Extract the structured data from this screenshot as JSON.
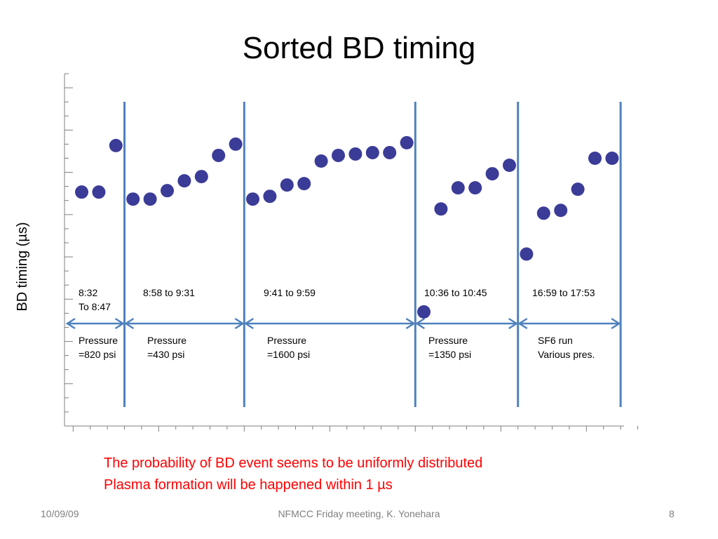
{
  "slide": {
    "title": "Sorted BD timing",
    "notes": [
      "The probability of BD event seems to be uniformly distributed",
      "Plasma formation will be happened within 1 µs"
    ],
    "footer": {
      "date": "10/09/09",
      "center": "NFMCC Friday meeting, K. Yonehara",
      "page": "8"
    }
  },
  "colors": {
    "marker": "#3b3b98",
    "divider": "#4f81bd",
    "axis": "#7f7f7f",
    "note": "#ff0000"
  },
  "chart_data": {
    "type": "scatter",
    "title": "",
    "ylabel": "BD timing (µs)",
    "xlabel": "",
    "ylim": [
      0,
      25
    ],
    "y_tick_count": 25,
    "x_tick_count": 32,
    "grid": false,
    "points": [
      {
        "x": 1,
        "y": 16.6
      },
      {
        "x": 2,
        "y": 16.6
      },
      {
        "x": 3,
        "y": 19.9
      },
      {
        "x": 4,
        "y": 16.1
      },
      {
        "x": 5,
        "y": 16.1
      },
      {
        "x": 6,
        "y": 16.7
      },
      {
        "x": 7,
        "y": 17.4
      },
      {
        "x": 8,
        "y": 17.7
      },
      {
        "x": 9,
        "y": 19.2
      },
      {
        "x": 10,
        "y": 20.0
      },
      {
        "x": 11,
        "y": 16.1
      },
      {
        "x": 12,
        "y": 16.3
      },
      {
        "x": 13,
        "y": 17.1
      },
      {
        "x": 14,
        "y": 17.2
      },
      {
        "x": 15,
        "y": 18.8
      },
      {
        "x": 16,
        "y": 19.2
      },
      {
        "x": 17,
        "y": 19.3
      },
      {
        "x": 18,
        "y": 19.4
      },
      {
        "x": 19,
        "y": 19.4
      },
      {
        "x": 20,
        "y": 20.1
      },
      {
        "x": 21,
        "y": 8.1
      },
      {
        "x": 22,
        "y": 15.4
      },
      {
        "x": 23,
        "y": 16.9
      },
      {
        "x": 24,
        "y": 16.9
      },
      {
        "x": 25,
        "y": 17.9
      },
      {
        "x": 26,
        "y": 18.5
      },
      {
        "x": 27,
        "y": 12.2
      },
      {
        "x": 28,
        "y": 15.1
      },
      {
        "x": 29,
        "y": 15.3
      },
      {
        "x": 30,
        "y": 16.8
      },
      {
        "x": 31,
        "y": 19.0
      },
      {
        "x": 32,
        "y": 19.0
      }
    ],
    "dividers_after_x": [
      3.5,
      10.5,
      20.5,
      26.5,
      32.5
    ],
    "groups": [
      {
        "time": [
          "8:32",
          "To 8:47"
        ],
        "condition": [
          "Pressure",
          "=820 psi"
        ]
      },
      {
        "time": [
          "8:58 to 9:31"
        ],
        "condition": [
          "Pressure",
          "=430 psi"
        ]
      },
      {
        "time": [
          "9:41 to 9:59"
        ],
        "condition": [
          "Pressure",
          "=1600 psi"
        ]
      },
      {
        "time": [
          "10:36 to 10:45"
        ],
        "condition": [
          "Pressure",
          "=1350 psi"
        ]
      },
      {
        "time": [
          "16:59 to 17:53"
        ],
        "condition": [
          "SF6 run",
          "Various pres."
        ]
      }
    ]
  }
}
